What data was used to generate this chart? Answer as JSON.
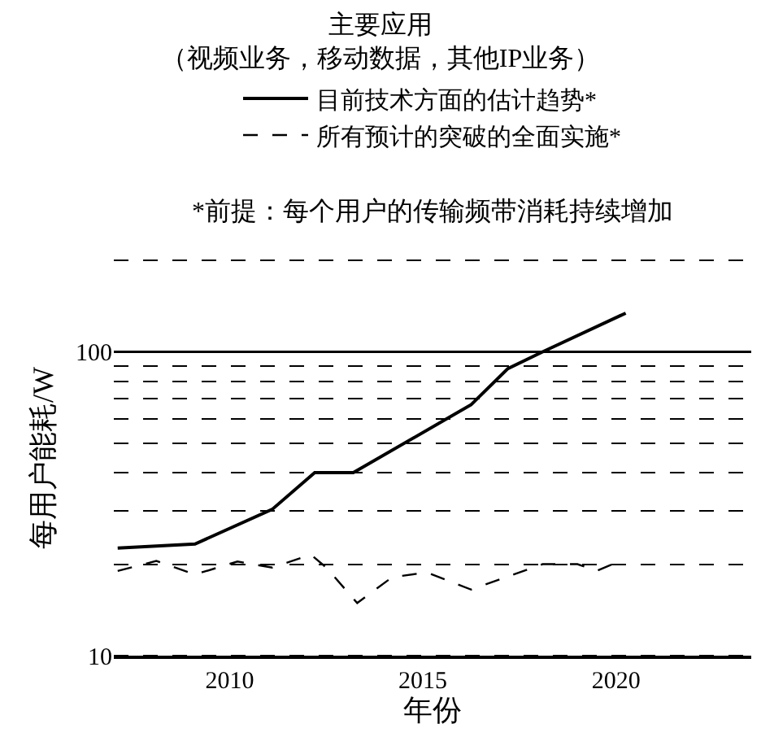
{
  "chart_data": {
    "type": "line",
    "title": "主要应用",
    "subtitle": "（视频业务，移动数据，其他IP业务）",
    "xlabel": "年份",
    "ylabel": "每用户能耗/W",
    "annotations": [
      "*前提：每个用户的传输频带消耗持续增加"
    ],
    "series": [
      {
        "name": "目前技术方面的估计趋势*",
        "color": "#000000",
        "line_style": "solid",
        "x": [
          2007.1,
          2009.1,
          2011.1,
          2012.2,
          2013.2,
          2016.25,
          2017.2,
          2018.1,
          2020.25
        ],
        "values": [
          22.6,
          23.3,
          30.3,
          40,
          40,
          67,
          88,
          100,
          134
        ]
      },
      {
        "name": "所有预计的突破的全面实施*",
        "color": "#000000",
        "line_style": "dashed",
        "x": [
          2007.1,
          2008.1,
          2009.1,
          2010.2,
          2011.1,
          2012.1,
          2012.5,
          2013.3,
          2014.2,
          2015.1,
          2016.25,
          2018.1,
          2019.0,
          2019.5,
          2020.1
        ],
        "values": [
          19,
          20.5,
          18.5,
          20.4,
          19.5,
          21.5,
          19.5,
          14.9,
          18.1,
          18.8,
          16.5,
          20,
          20,
          19,
          20.5
        ]
      }
    ],
    "log": "y",
    "xlim": [
      2007,
      2023.5
    ],
    "xticks": [
      2010,
      2015,
      2020
    ],
    "ylim": [
      10,
      200
    ],
    "yticks": [
      10,
      {
        "value": 20,
        "label": null
      },
      {
        "value": 30,
        "label": null
      },
      {
        "value": 40,
        "label": null
      },
      {
        "value": 50,
        "label": null
      },
      {
        "value": 60,
        "label": null
      },
      {
        "value": 70,
        "label": null
      },
      {
        "value": 80,
        "label": null
      },
      {
        "value": 90,
        "label": null
      },
      100,
      {
        "value": 200,
        "label": null
      }
    ],
    "grid": "y",
    "ref_lines": [
      {
        "axis": "y",
        "value": 100,
        "label": null,
        "line_style": "solid",
        "color": "#000000"
      }
    ],
    "legend": "top",
    "marker": "none"
  }
}
